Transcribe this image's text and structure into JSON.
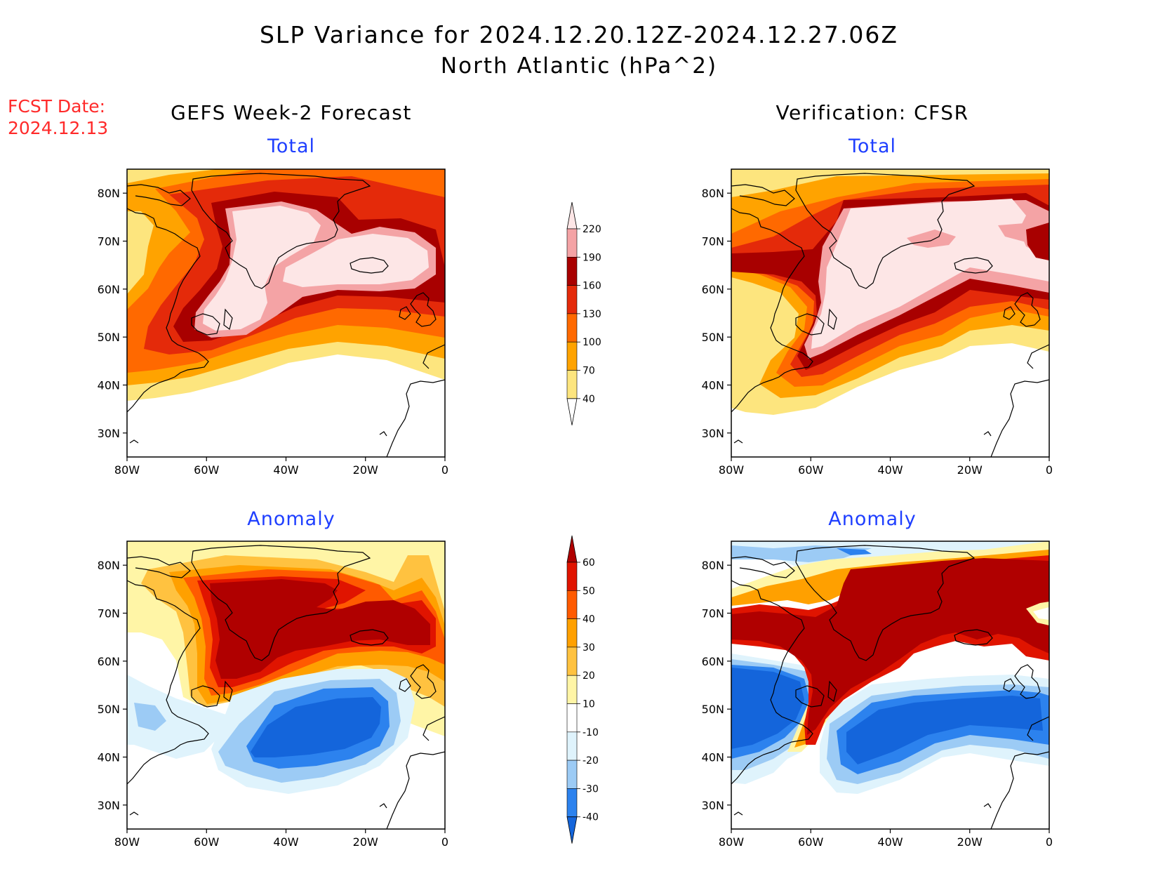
{
  "header": {
    "title": "SLP Variance for 2024.12.20.12Z-2024.12.27.06Z",
    "subtitle": "North Atlantic (hPa^2)",
    "fcst_label": "FCST Date:",
    "fcst_date": "2024.12.13"
  },
  "columns": {
    "left": "GEFS Week-2 Forecast",
    "right": "Verification: CFSR"
  },
  "panels": [
    {
      "title": "Total"
    },
    {
      "title": "Total"
    },
    {
      "title": "Anomaly"
    },
    {
      "title": "Anomaly"
    }
  ],
  "axes": {
    "lon_labels": [
      "80W",
      "60W",
      "40W",
      "20W",
      "0"
    ],
    "lat_labels": [
      "30N",
      "40N",
      "50N",
      "60N",
      "70N",
      "80N"
    ]
  },
  "colorbar_total": {
    "levels": [
      "40",
      "70",
      "100",
      "130",
      "160",
      "190",
      "220"
    ],
    "colors": [
      "#fde57e",
      "#ffa300",
      "#ff6900",
      "#e42a0a",
      "#a80000",
      "#f4a3a5",
      "#fde6e6"
    ]
  },
  "colorbar_anomaly": {
    "levels": [
      "-40",
      "-30",
      "-20",
      "-10",
      "10",
      "20",
      "30",
      "40",
      "50",
      "60"
    ],
    "colors": [
      "#1465db",
      "#2c82ee",
      "#9ccbf5",
      "#dff3fc",
      "#ffffff",
      "#fff5a6",
      "#ffc240",
      "#ffa000",
      "#ff5a00",
      "#e01400",
      "#b00000"
    ]
  }
}
